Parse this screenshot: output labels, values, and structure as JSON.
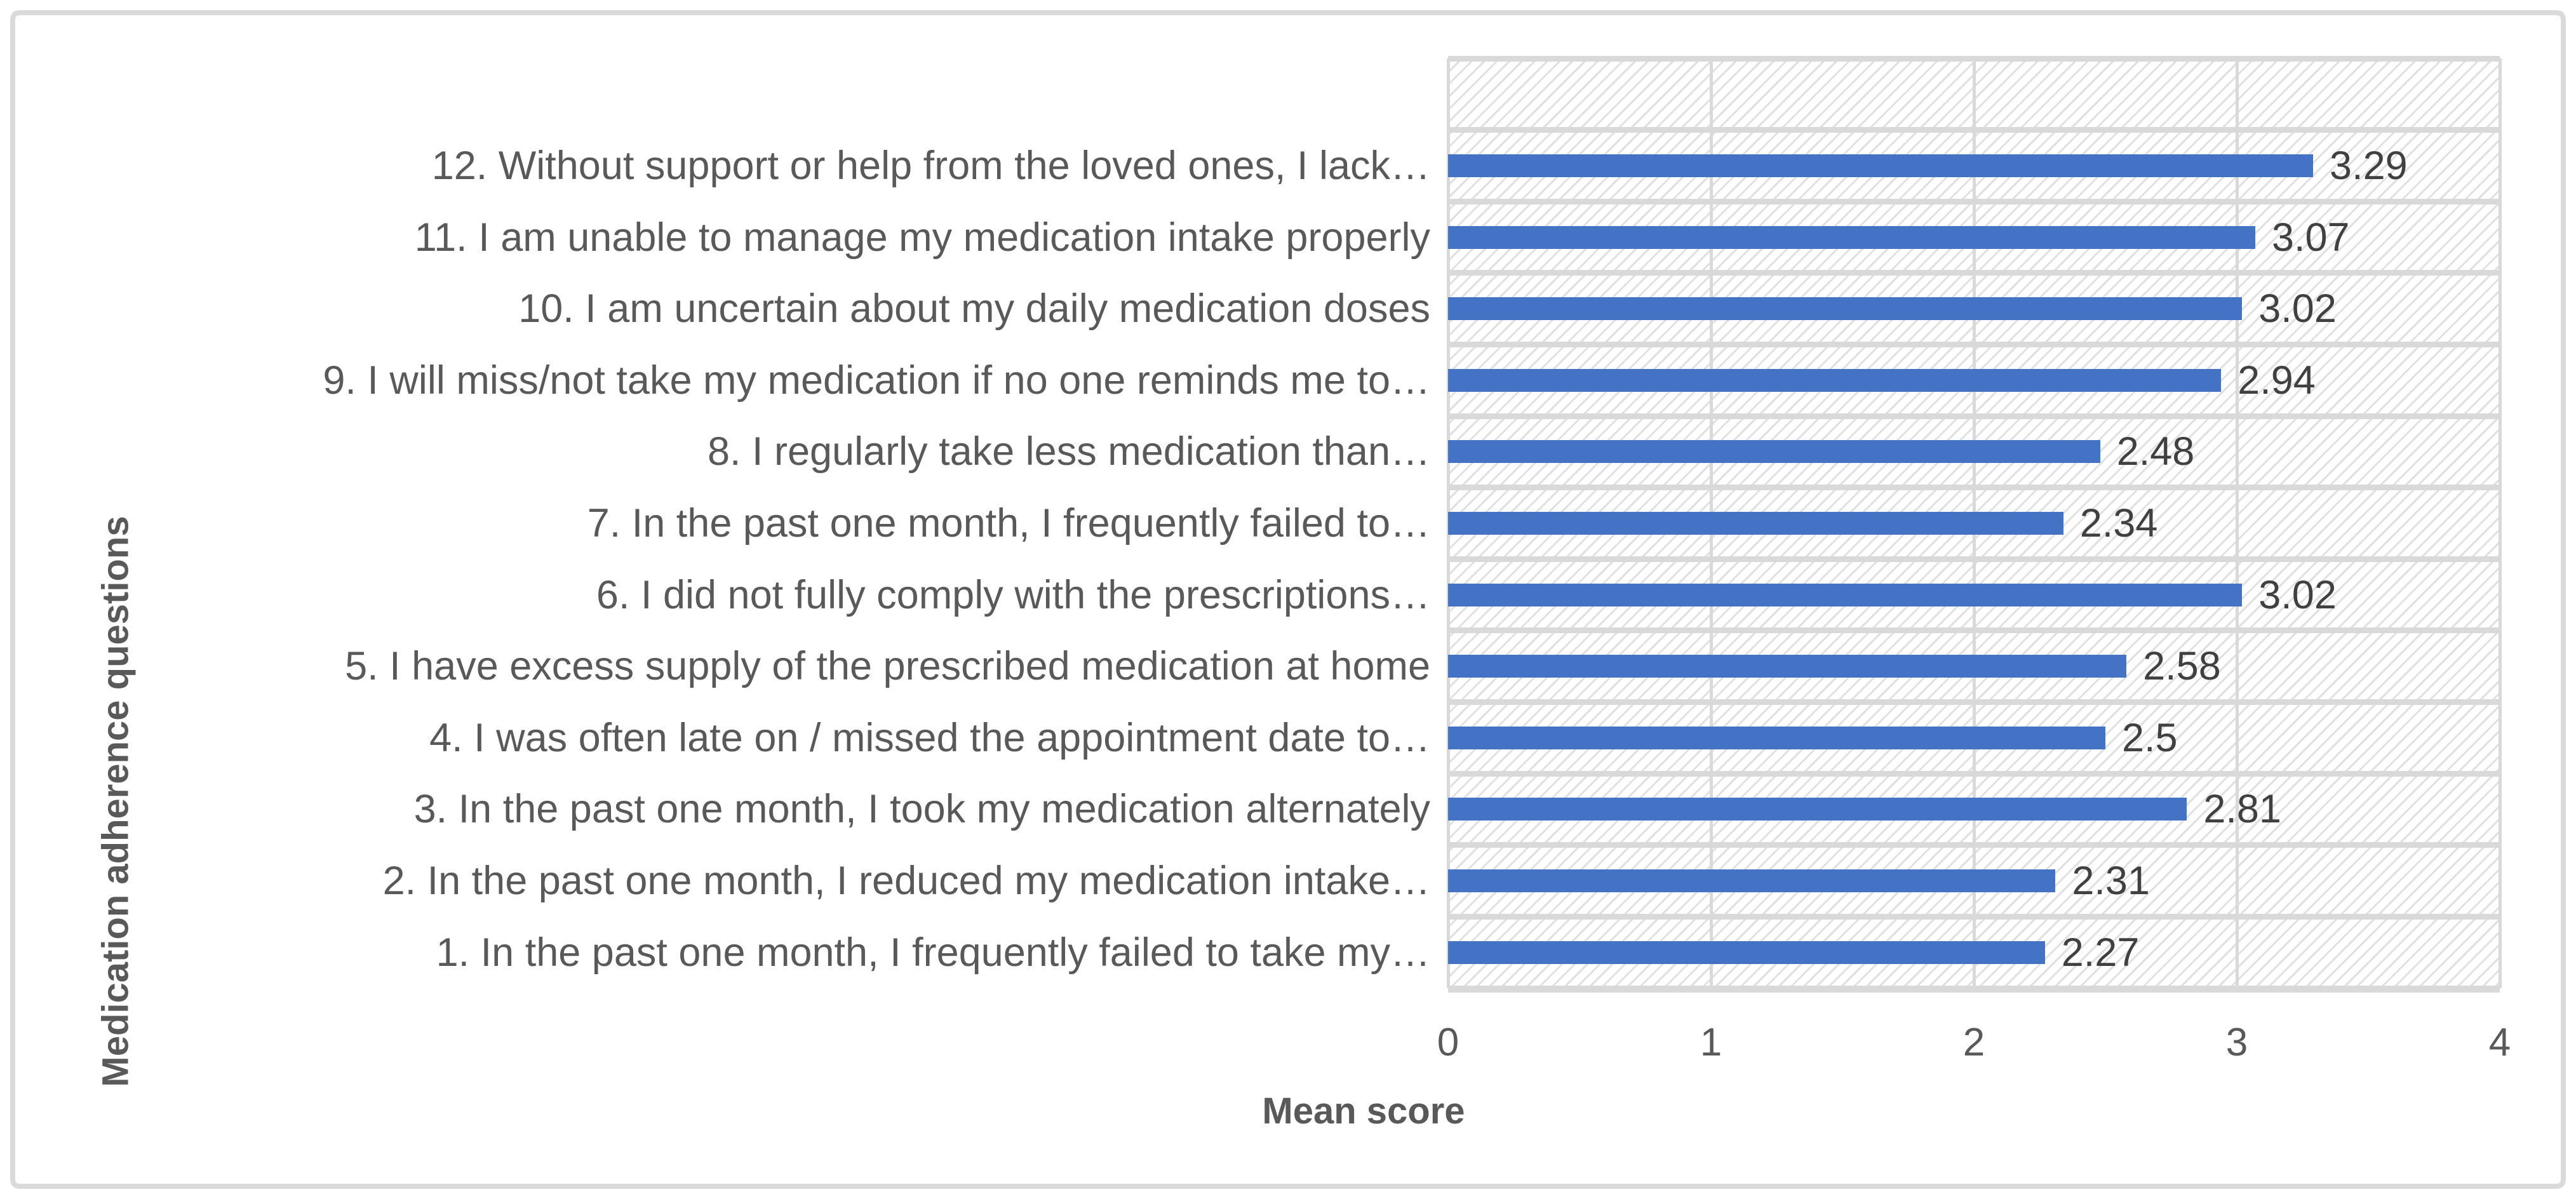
{
  "chart_data": {
    "type": "bar",
    "orientation": "horizontal",
    "title": "",
    "xlabel": "Mean score",
    "ylabel": "Medication adherence questions",
    "xlim": [
      0,
      4
    ],
    "xticks": [
      "0",
      "1",
      "2",
      "3",
      "4"
    ],
    "gridlines": "vertical major lines, light gray; horizontal category separator lines, light gray",
    "legend": "none",
    "plot_background": "white with light gray diagonal hatch pattern",
    "leading_blank_category": true,
    "order": "top-to-bottom",
    "categories": [
      "12. Without support or help from the loved ones, I lack…",
      "11. I am unable to manage my medication intake properly",
      "10. I am uncertain about my daily medication doses",
      "9. I will miss/not take my medication if no one reminds me to…",
      "8. I regularly take less medication than…",
      "7. In the past one month, I frequently failed to…",
      "6. I did not fully comply with the prescriptions…",
      "5. I have excess supply of the prescribed medication at home",
      "4. I was often late on / missed the appointment date to…",
      "3. In the past one month, I took my medication alternately",
      "2. In the past one month, I reduced my medication intake…",
      "1. In the past one month, I frequently failed to take my…"
    ],
    "values": [
      3.29,
      3.07,
      3.02,
      2.94,
      2.48,
      2.34,
      3.02,
      2.58,
      2.5,
      2.81,
      2.31,
      2.27
    ],
    "data_labels": [
      "3.29",
      "3.07",
      "3.02",
      "2.94",
      "2.48",
      "2.34",
      "3.02",
      "2.58",
      "2.5",
      "2.81",
      "2.31",
      "2.27"
    ],
    "colors": {
      "bar": "#4472C4",
      "grid": "#D9D9D9",
      "frame_border": "#DADADA",
      "text": "#595959",
      "data_label_text": "#404040"
    }
  }
}
